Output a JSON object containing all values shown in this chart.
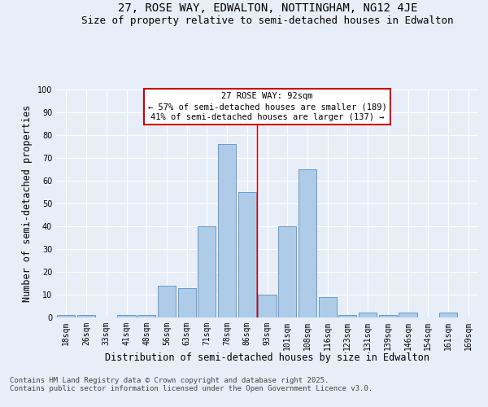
{
  "title_line1": "27, ROSE WAY, EDWALTON, NOTTINGHAM, NG12 4JE",
  "title_line2": "Size of property relative to semi-detached houses in Edwalton",
  "xlabel": "Distribution of semi-detached houses by size in Edwalton",
  "ylabel": "Number of semi-detached properties",
  "annotation_title": "27 ROSE WAY: 92sqm",
  "annotation_line2": "← 57% of semi-detached houses are smaller (189)",
  "annotation_line3": "41% of semi-detached houses are larger (137) →",
  "footer_line1": "Contains HM Land Registry data © Crown copyright and database right 2025.",
  "footer_line2": "Contains public sector information licensed under the Open Government Licence v3.0.",
  "bar_labels": [
    "18sqm",
    "26sqm",
    "33sqm",
    "41sqm",
    "48sqm",
    "56sqm",
    "63sqm",
    "71sqm",
    "78sqm",
    "86sqm",
    "93sqm",
    "101sqm",
    "108sqm",
    "116sqm",
    "123sqm",
    "131sqm",
    "139sqm",
    "146sqm",
    "154sqm",
    "161sqm",
    "169sqm"
  ],
  "bar_values": [
    1,
    1,
    0,
    1,
    1,
    14,
    13,
    40,
    76,
    55,
    10,
    40,
    65,
    9,
    1,
    2,
    1,
    2,
    0,
    2,
    0
  ],
  "bar_color": "#aecce8",
  "bar_edge_color": "#6699cc",
  "reference_line_x": 9.5,
  "ylim": [
    0,
    100
  ],
  "yticks": [
    0,
    10,
    20,
    30,
    40,
    50,
    60,
    70,
    80,
    90,
    100
  ],
  "background_color": "#e8eef8",
  "plot_background_color": "#e8eef8",
  "grid_color": "#ffffff",
  "annotation_box_color": "#ffffff",
  "annotation_box_edge": "#cc0000",
  "ref_line_color": "#cc0000",
  "title_fontsize": 10,
  "subtitle_fontsize": 9,
  "axis_label_fontsize": 8.5,
  "tick_fontsize": 7,
  "annotation_fontsize": 7.5,
  "footer_fontsize": 6.5
}
